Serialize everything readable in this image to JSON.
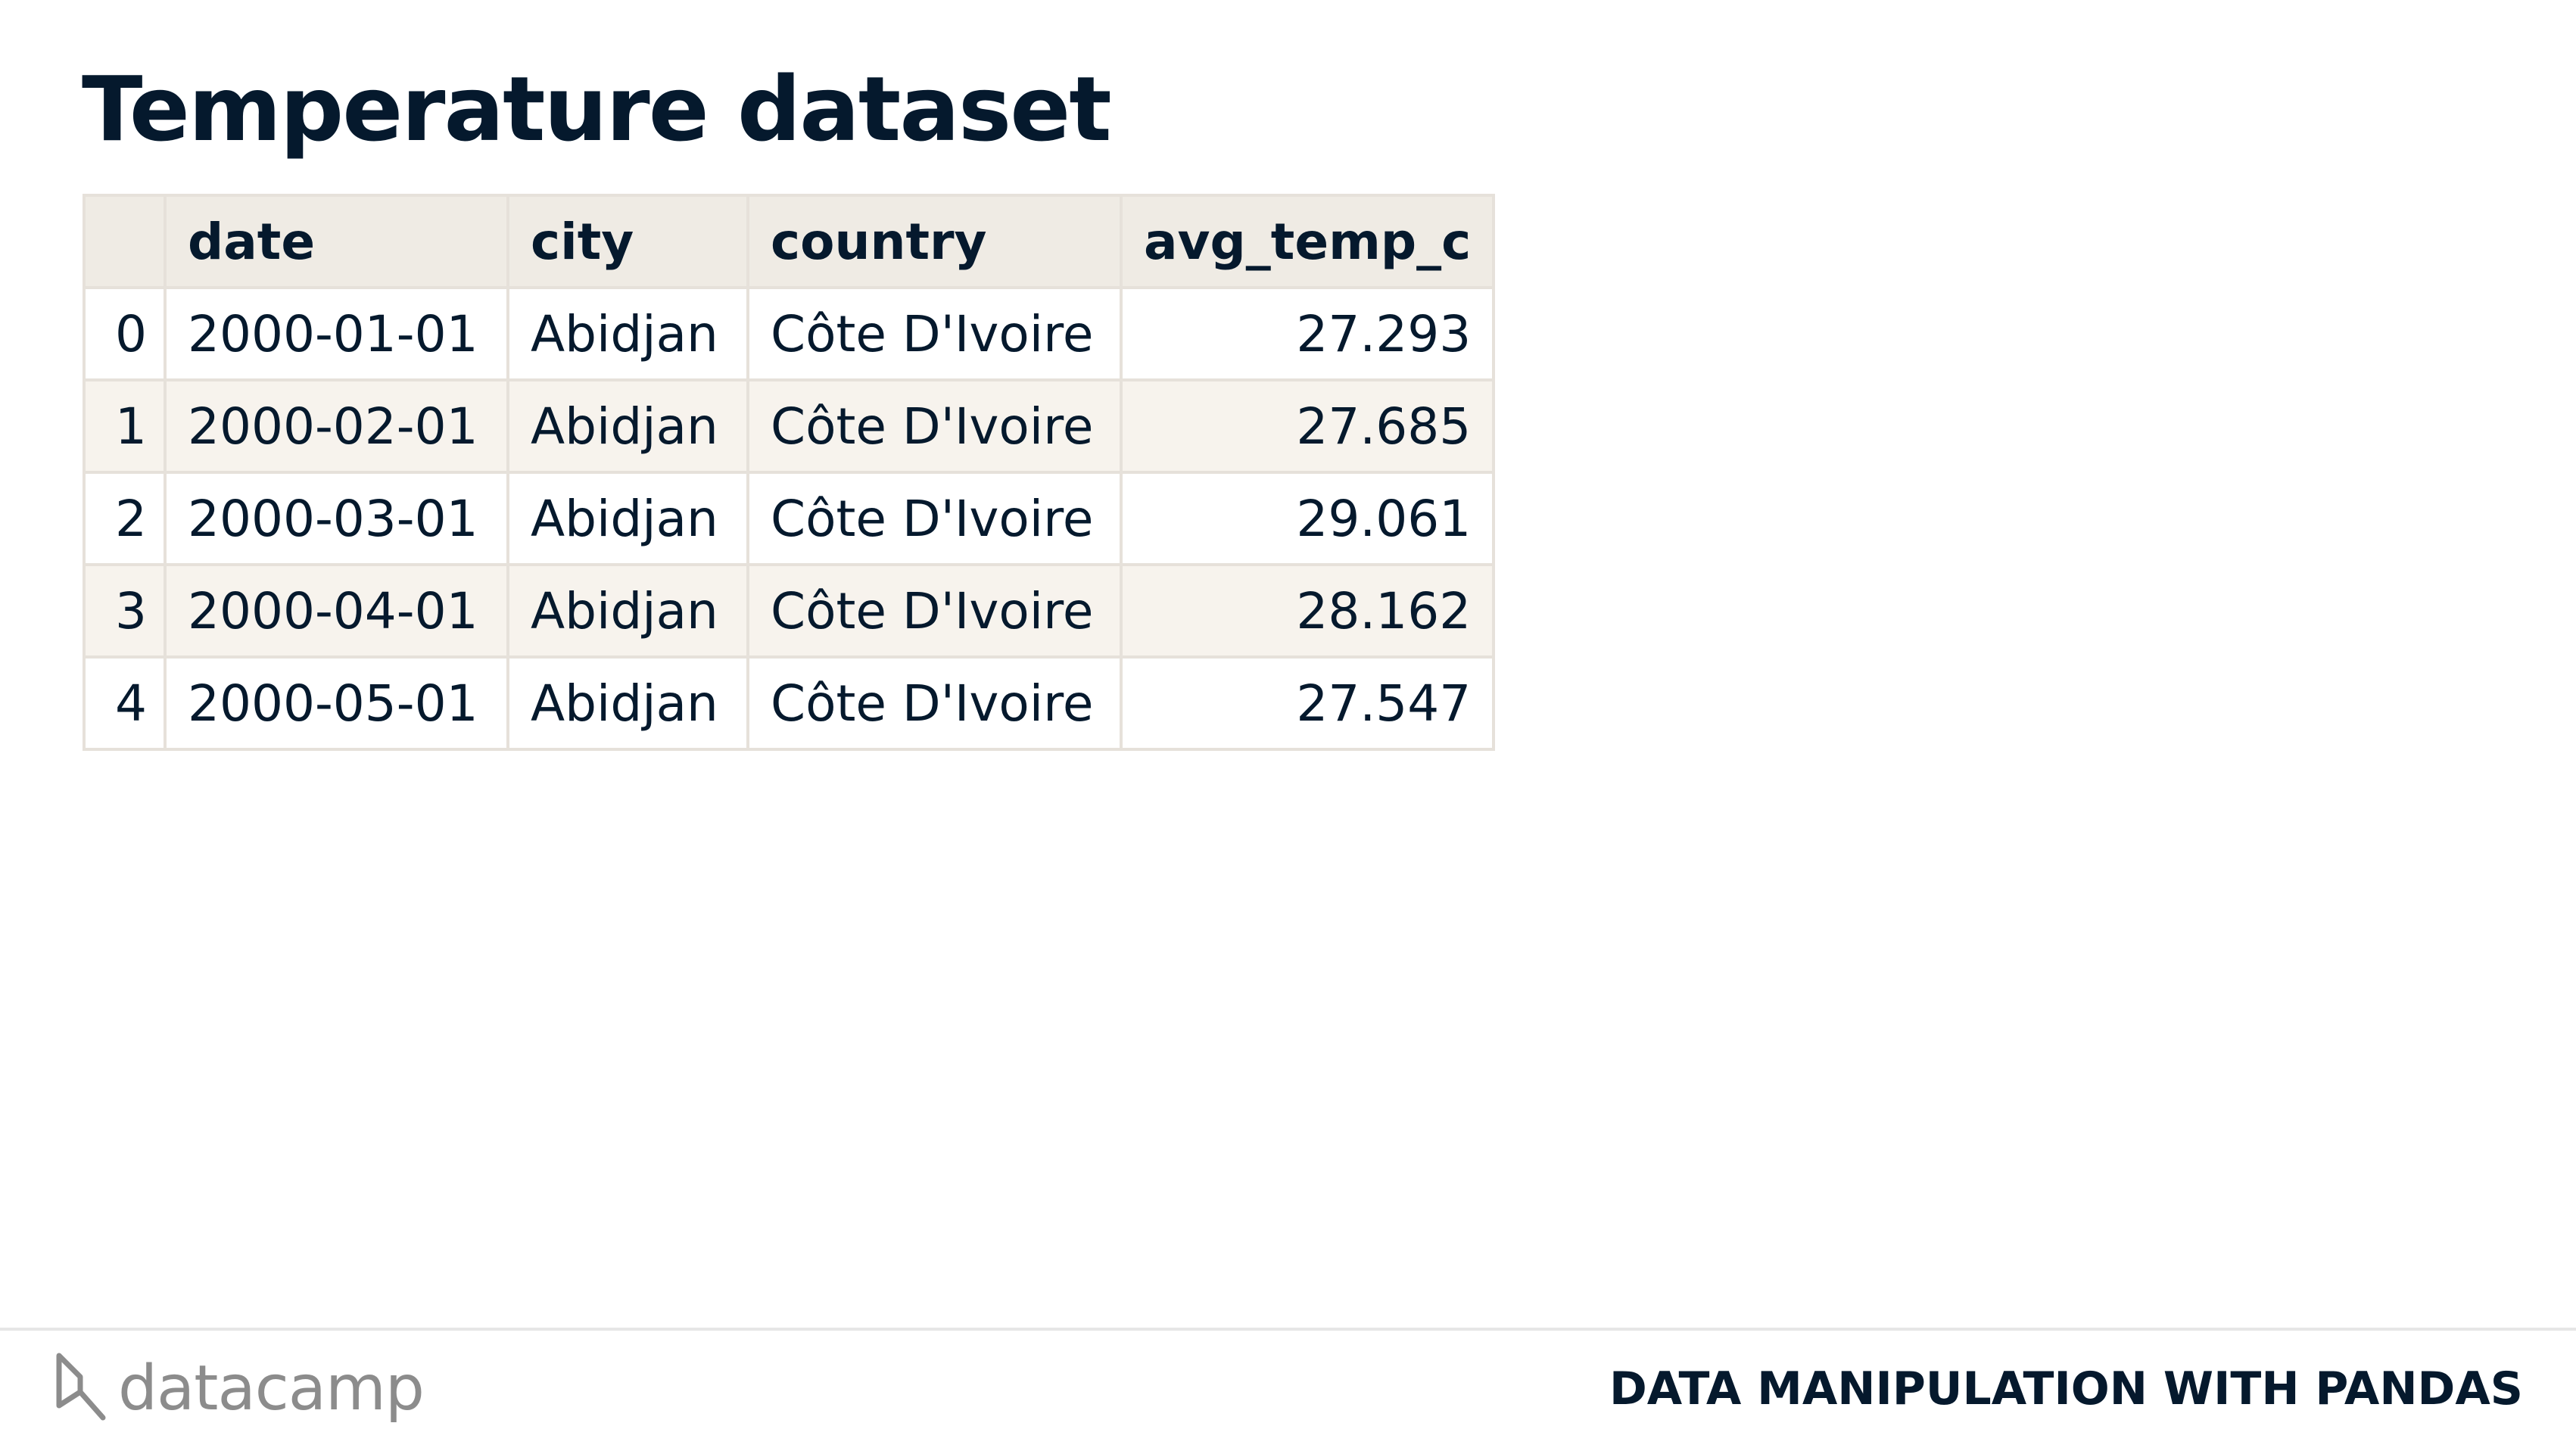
{
  "slide": {
    "title": "Temperature dataset"
  },
  "table": {
    "columns": [
      "",
      "date",
      "city",
      "country",
      "avg_temp_c"
    ],
    "rows": [
      [
        "0",
        "2000-01-01",
        "Abidjan",
        "Côte D'Ivoire",
        "27.293"
      ],
      [
        "1",
        "2000-02-01",
        "Abidjan",
        "Côte D'Ivoire",
        "27.685"
      ],
      [
        "2",
        "2000-03-01",
        "Abidjan",
        "Côte D'Ivoire",
        "29.061"
      ],
      [
        "3",
        "2000-04-01",
        "Abidjan",
        "Côte D'Ivoire",
        "28.162"
      ],
      [
        "4",
        "2000-05-01",
        "Abidjan",
        "Côte D'Ivoire",
        "27.547"
      ]
    ]
  },
  "footer": {
    "logo_text": "datacamp",
    "logo_icon": "datacamp-logo-icon",
    "course_name": "DATA MANIPULATION WITH PANDAS"
  },
  "colors": {
    "text": "#05192d",
    "header_bg": "#efebe4",
    "stripe_bg": "#f7f3ed",
    "border": "#e6e1da",
    "logo_gray": "#8c8c8c"
  }
}
